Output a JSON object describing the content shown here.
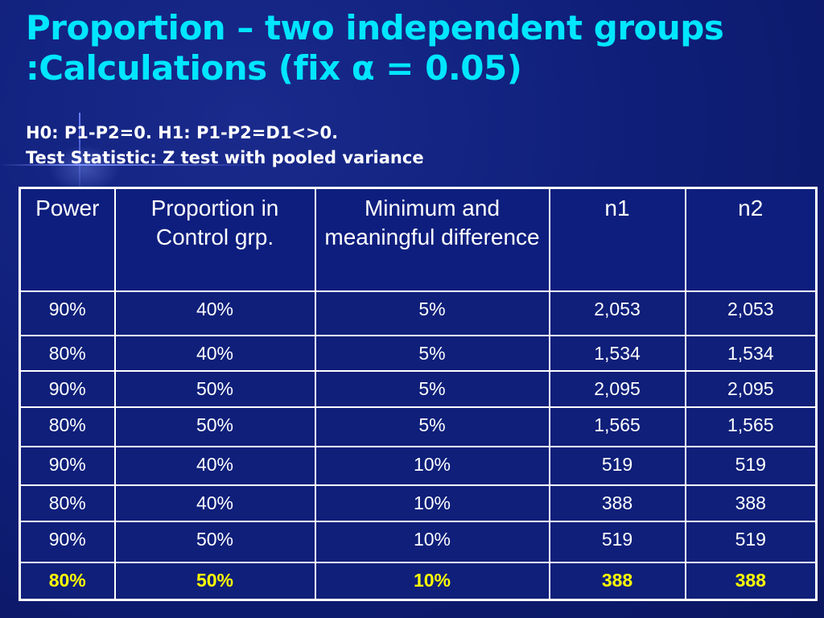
{
  "slide": {
    "title_line1": "Proportion – two independent groups",
    "title_line2_prefix": ":Calculations (fix ",
    "title_alpha": "α",
    "title_line2_suffix": " = 0.05)",
    "hypothesis": "H0: P1-P2=0. H1: P1-P2=D1<>0.",
    "test_statistic": "Test Statistic: Z test with pooled variance"
  },
  "table": {
    "headers": [
      "Power",
      "Proportion in Control grp.",
      "Minimum and meaningful difference",
      "n1",
      "n2"
    ],
    "rows": [
      [
        "90%",
        "40%",
        "5%",
        "2,053",
        "2,053"
      ],
      [
        "80%",
        "40%",
        "5%",
        "1,534",
        "1,534"
      ],
      [
        "90%",
        "50%",
        "5%",
        "2,095",
        "2,095"
      ],
      [
        "80%",
        "50%",
        "5%",
        "1,565",
        "1,565"
      ],
      [
        "90%",
        "40%",
        "10%",
        "519",
        "519"
      ],
      [
        "80%",
        "40%",
        "10%",
        "388",
        "388"
      ],
      [
        "90%",
        "50%",
        "10%",
        "519",
        "519"
      ],
      [
        "80%",
        "50%",
        "10%",
        "388",
        "388"
      ]
    ],
    "highlighted_row": 7
  },
  "colors": {
    "title": "#00e6ff",
    "background": "#0f1f7a",
    "text": "#ffffff",
    "highlight": "#ffff00"
  }
}
